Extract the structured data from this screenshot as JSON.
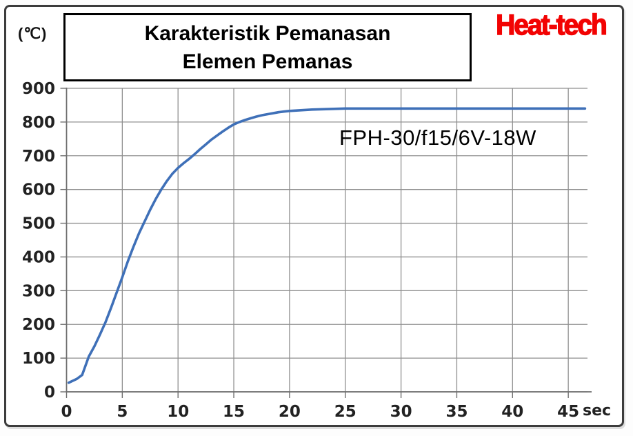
{
  "header": {
    "y_unit_label": "(℃)",
    "title_line1": "Karakteristik Pemanasan",
    "title_line2": "Elemen Pemanas",
    "logo_text": "Heat-tech",
    "logo_color": "#f20303"
  },
  "annotation": {
    "series_label": "FPH-30/f15/6V-18W"
  },
  "colors": {
    "grid": "#8f8f8f",
    "axis": "#6e6e6e",
    "tick_label": "#222222",
    "curve": "#3f70b8",
    "frame": "#3c3c3c",
    "title_text": "#000000"
  },
  "chart_data": {
    "type": "line",
    "title": "Karakteristik Pemanasan Elemen Pemanas",
    "xlabel": "sec",
    "ylabel": "(℃)",
    "x_unit": "sec",
    "x_ticks": [
      0,
      5,
      10,
      15,
      20,
      25,
      30,
      35,
      40,
      45
    ],
    "y_ticks": [
      0,
      100,
      200,
      300,
      400,
      500,
      600,
      700,
      800,
      900
    ],
    "xlim": [
      0,
      47
    ],
    "ylim": [
      0,
      900
    ],
    "grid": true,
    "legend_position": "none",
    "series": [
      {
        "name": "FPH-30/f15/6V-18W",
        "color": "#3f70b8",
        "points": [
          [
            0.2,
            27
          ],
          [
            0.9,
            38
          ],
          [
            1.4,
            50
          ],
          [
            2,
            105
          ],
          [
            2.5,
            135
          ],
          [
            3,
            170
          ],
          [
            3.5,
            207
          ],
          [
            4,
            250
          ],
          [
            4.5,
            295
          ],
          [
            5,
            340
          ],
          [
            5.5,
            387
          ],
          [
            6,
            430
          ],
          [
            6.5,
            470
          ],
          [
            7,
            505
          ],
          [
            7.5,
            540
          ],
          [
            8,
            572
          ],
          [
            8.5,
            600
          ],
          [
            9,
            625
          ],
          [
            9.5,
            647
          ],
          [
            10,
            664
          ],
          [
            10.5,
            678
          ],
          [
            11,
            691
          ],
          [
            11.5,
            705
          ],
          [
            12,
            720
          ],
          [
            12.5,
            734
          ],
          [
            13,
            748
          ],
          [
            13.5,
            760
          ],
          [
            14,
            772
          ],
          [
            14.5,
            783
          ],
          [
            15,
            793
          ],
          [
            15.5,
            800
          ],
          [
            16,
            806
          ],
          [
            16.5,
            811
          ],
          [
            17,
            816
          ],
          [
            17.5,
            820
          ],
          [
            18,
            823
          ],
          [
            18.5,
            826
          ],
          [
            19,
            829
          ],
          [
            19.5,
            831
          ],
          [
            20,
            833
          ],
          [
            21,
            835
          ],
          [
            22,
            837
          ],
          [
            23,
            838
          ],
          [
            24,
            839
          ],
          [
            25,
            840
          ],
          [
            28,
            840
          ],
          [
            31,
            840
          ],
          [
            34,
            840
          ],
          [
            37,
            840
          ],
          [
            40,
            840
          ],
          [
            43,
            840
          ],
          [
            46.5,
            840
          ]
        ]
      }
    ]
  }
}
